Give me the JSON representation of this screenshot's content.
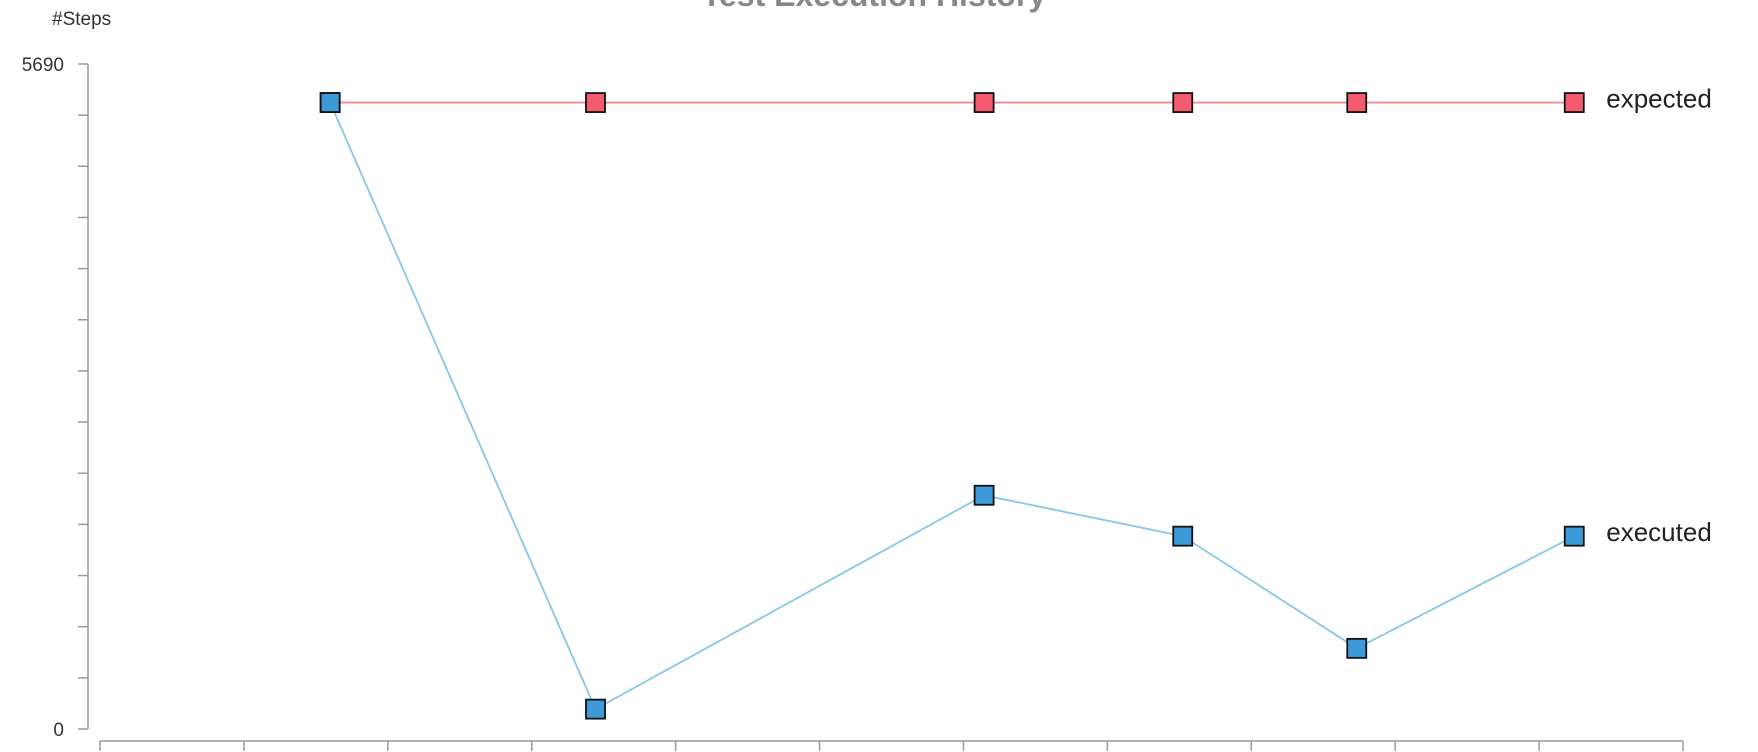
{
  "chart_data": {
    "type": "line",
    "title": "Test Execution History",
    "ylabel": "#Steps",
    "xlabel": "",
    "ylim": [
      0,
      5690
    ],
    "y_ticks": [
      0,
      5690
    ],
    "y_tick_labels": [
      "0",
      "5690"
    ],
    "x_range": [
      0,
      11
    ],
    "grid": false,
    "legend": "inline labels at right end of each series",
    "series": [
      {
        "name": "expected",
        "color": "#f45b6e",
        "line_color": "#f08a98",
        "points": [
          {
            "x": 1.67,
            "y": 5360
          },
          {
            "x": 3.5,
            "y": 5360
          },
          {
            "x": 6.18,
            "y": 5360
          },
          {
            "x": 7.55,
            "y": 5360
          },
          {
            "x": 8.75,
            "y": 5360
          },
          {
            "x": 10.25,
            "y": 5360
          }
        ]
      },
      {
        "name": "executed",
        "color": "#3d9ad8",
        "line_color": "#87c7ea",
        "points": [
          {
            "x": 1.67,
            "y": 5360
          },
          {
            "x": 3.5,
            "y": 170
          },
          {
            "x": 6.18,
            "y": 2000
          },
          {
            "x": 7.55,
            "y": 1650
          },
          {
            "x": 8.75,
            "y": 690
          },
          {
            "x": 10.25,
            "y": 1650
          }
        ]
      }
    ]
  }
}
